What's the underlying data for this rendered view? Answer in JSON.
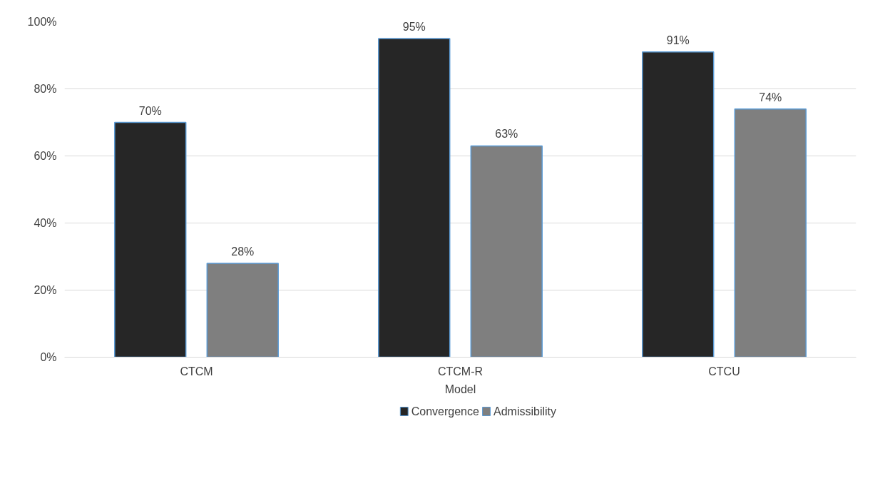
{
  "chart_data": {
    "type": "bar",
    "xlabel": "Model",
    "categories": [
      "CTCM",
      "CTCM-R",
      "CTCU"
    ],
    "series": [
      {
        "name": "Convergence",
        "color": "#262626",
        "values": [
          70,
          95,
          91
        ],
        "value_labels": [
          "70%",
          "95%",
          "91%"
        ]
      },
      {
        "name": "Admissibility",
        "color": "#7f7f7f",
        "values": [
          28,
          63,
          74
        ],
        "value_labels": [
          "28%",
          "63%",
          "74%"
        ]
      }
    ],
    "ylim": [
      0,
      100
    ],
    "yticks": [
      {
        "value": 0,
        "label": "0%"
      },
      {
        "value": 20,
        "label": "20%"
      },
      {
        "value": 40,
        "label": "40%"
      },
      {
        "value": 60,
        "label": "60%"
      },
      {
        "value": 80,
        "label": "80%"
      },
      {
        "value": 100,
        "label": "100%"
      }
    ],
    "grid": "y",
    "legend": "bottom"
  }
}
